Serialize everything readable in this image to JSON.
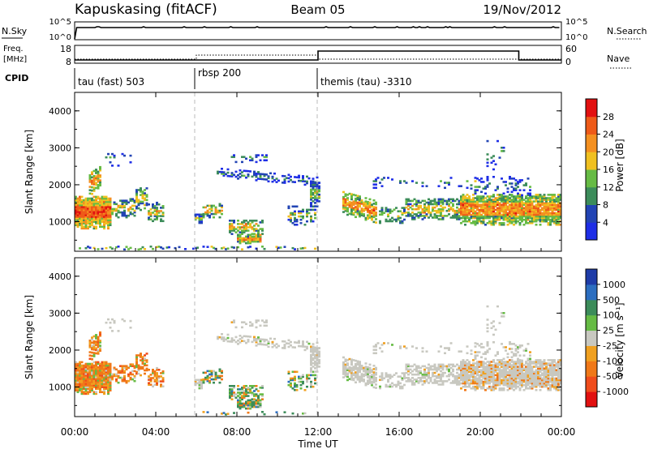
{
  "header": {
    "station": "Kapuskasing (fitACF)",
    "beam": "Beam 05",
    "date": "19/Nov/2012"
  },
  "noise_panel": {
    "left_label": "N.Sky",
    "left_ticks": [
      "10^5",
      "10^0"
    ],
    "right_label": "N.Search",
    "right_ticks": [
      "10^5",
      "10^0"
    ]
  },
  "freq_panel": {
    "left_label_line1": "Freq.",
    "left_label_line2": "[MHz]",
    "left_ticks": [
      "18",
      "8"
    ],
    "right_label": "Nave",
    "right_ticks": [
      "60",
      "0"
    ]
  },
  "cpid": {
    "label": "CPID",
    "segments": [
      {
        "name": "tau (fast) 503",
        "start_hour": 0
      },
      {
        "name": "rbsp 200",
        "start_hour": 6
      },
      {
        "name": "themis (tau) -3310",
        "start_hour": 12
      }
    ]
  },
  "colors": {
    "power": [
      "#1e2ee6",
      "#2244b4",
      "#3c8c5a",
      "#66bb44",
      "#f0c020",
      "#f49020",
      "#ee5a18",
      "#e21010"
    ],
    "velocity": [
      "#1e3ca8",
      "#2c6ec0",
      "#3c8c5a",
      "#66bb44",
      "#c8c8c0",
      "#f0a020",
      "#f07818",
      "#f04c1c",
      "#e21010"
    ]
  },
  "chart_data": [
    {
      "type": "heatmap",
      "name": "power",
      "ylabel": "Slant Range [km]",
      "ylim": [
        200,
        4500
      ],
      "yticks": [
        "1000",
        "2000",
        "3000",
        "4000"
      ],
      "xlim_hours": [
        0,
        24
      ],
      "colorbar_label": "Power [dB]",
      "colorbar_ticks": [
        "4",
        "8",
        "12",
        "16",
        "20",
        "24",
        "28"
      ],
      "colorbar_range": [
        0,
        32
      ],
      "mode_change_hours": [
        6,
        12
      ]
    },
    {
      "type": "heatmap",
      "name": "velocity",
      "ylabel": "Slant Range [km]",
      "ylim": [
        200,
        4500
      ],
      "yticks": [
        "1000",
        "2000",
        "3000",
        "4000"
      ],
      "xlim_hours": [
        0,
        24
      ],
      "xticks": [
        "00:00",
        "04:00",
        "08:00",
        "12:00",
        "16:00",
        "20:00",
        "00:00"
      ],
      "xlabel": "Time UT",
      "colorbar_label": "Velocity [m s⁻¹]",
      "colorbar_ticks": [
        "1000",
        "500",
        "100",
        "25",
        "-25",
        "-100",
        "-500",
        "-1000"
      ],
      "mode_change_hours": [
        6,
        12
      ]
    }
  ]
}
